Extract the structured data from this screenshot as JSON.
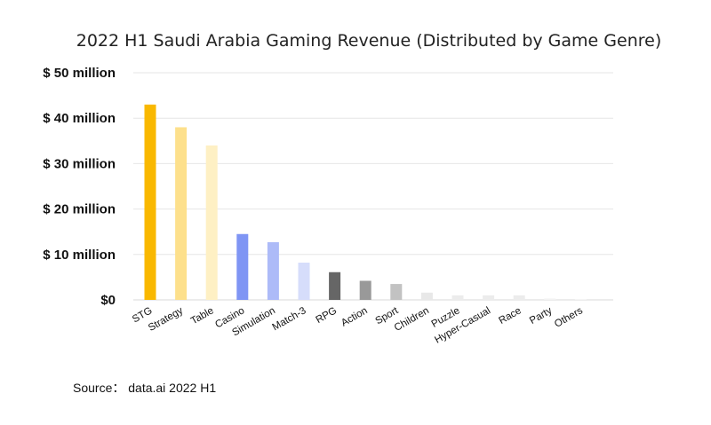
{
  "chart_data": {
    "type": "bar",
    "title": "2022 H1 Saudi Arabia Gaming Revenue (Distributed by Game Genre)",
    "xlabel": "",
    "ylabel": "",
    "categories": [
      "STG",
      "Strategy",
      "Table",
      "Casino",
      "Simulation",
      "Match-3",
      "RPG",
      "Action",
      "Sport",
      "Children",
      "Puzzle",
      "Hyper-Casual",
      "Race",
      "Party",
      "Others"
    ],
    "values": [
      43,
      38,
      34,
      14.5,
      12.7,
      8.2,
      6.1,
      4.2,
      3.5,
      1.6,
      1.0,
      1.0,
      1.0,
      0.3,
      0.2
    ],
    "colors": [
      "#f9b800",
      "#fde08c",
      "#fef0c4",
      "#7f95f4",
      "#adbbf8",
      "#d6ddfb",
      "#666666",
      "#999999",
      "#c2c2c2",
      "#e8e8e8",
      "#ececec",
      "#ececec",
      "#ececec",
      "#f2f2f2",
      "#f5f5f5"
    ],
    "yticks": [
      0,
      10,
      20,
      30,
      40,
      50
    ],
    "ytick_labels": [
      "$0",
      "$ 10 million",
      "$ 20 million",
      "$ 30 million",
      "$ 40 million",
      "$ 50 million"
    ],
    "ylim": [
      0,
      50
    ],
    "grid": true,
    "grid_color": "#e6e6e6"
  },
  "source": {
    "label": "Source：",
    "value": "data.ai 2022 H1"
  }
}
